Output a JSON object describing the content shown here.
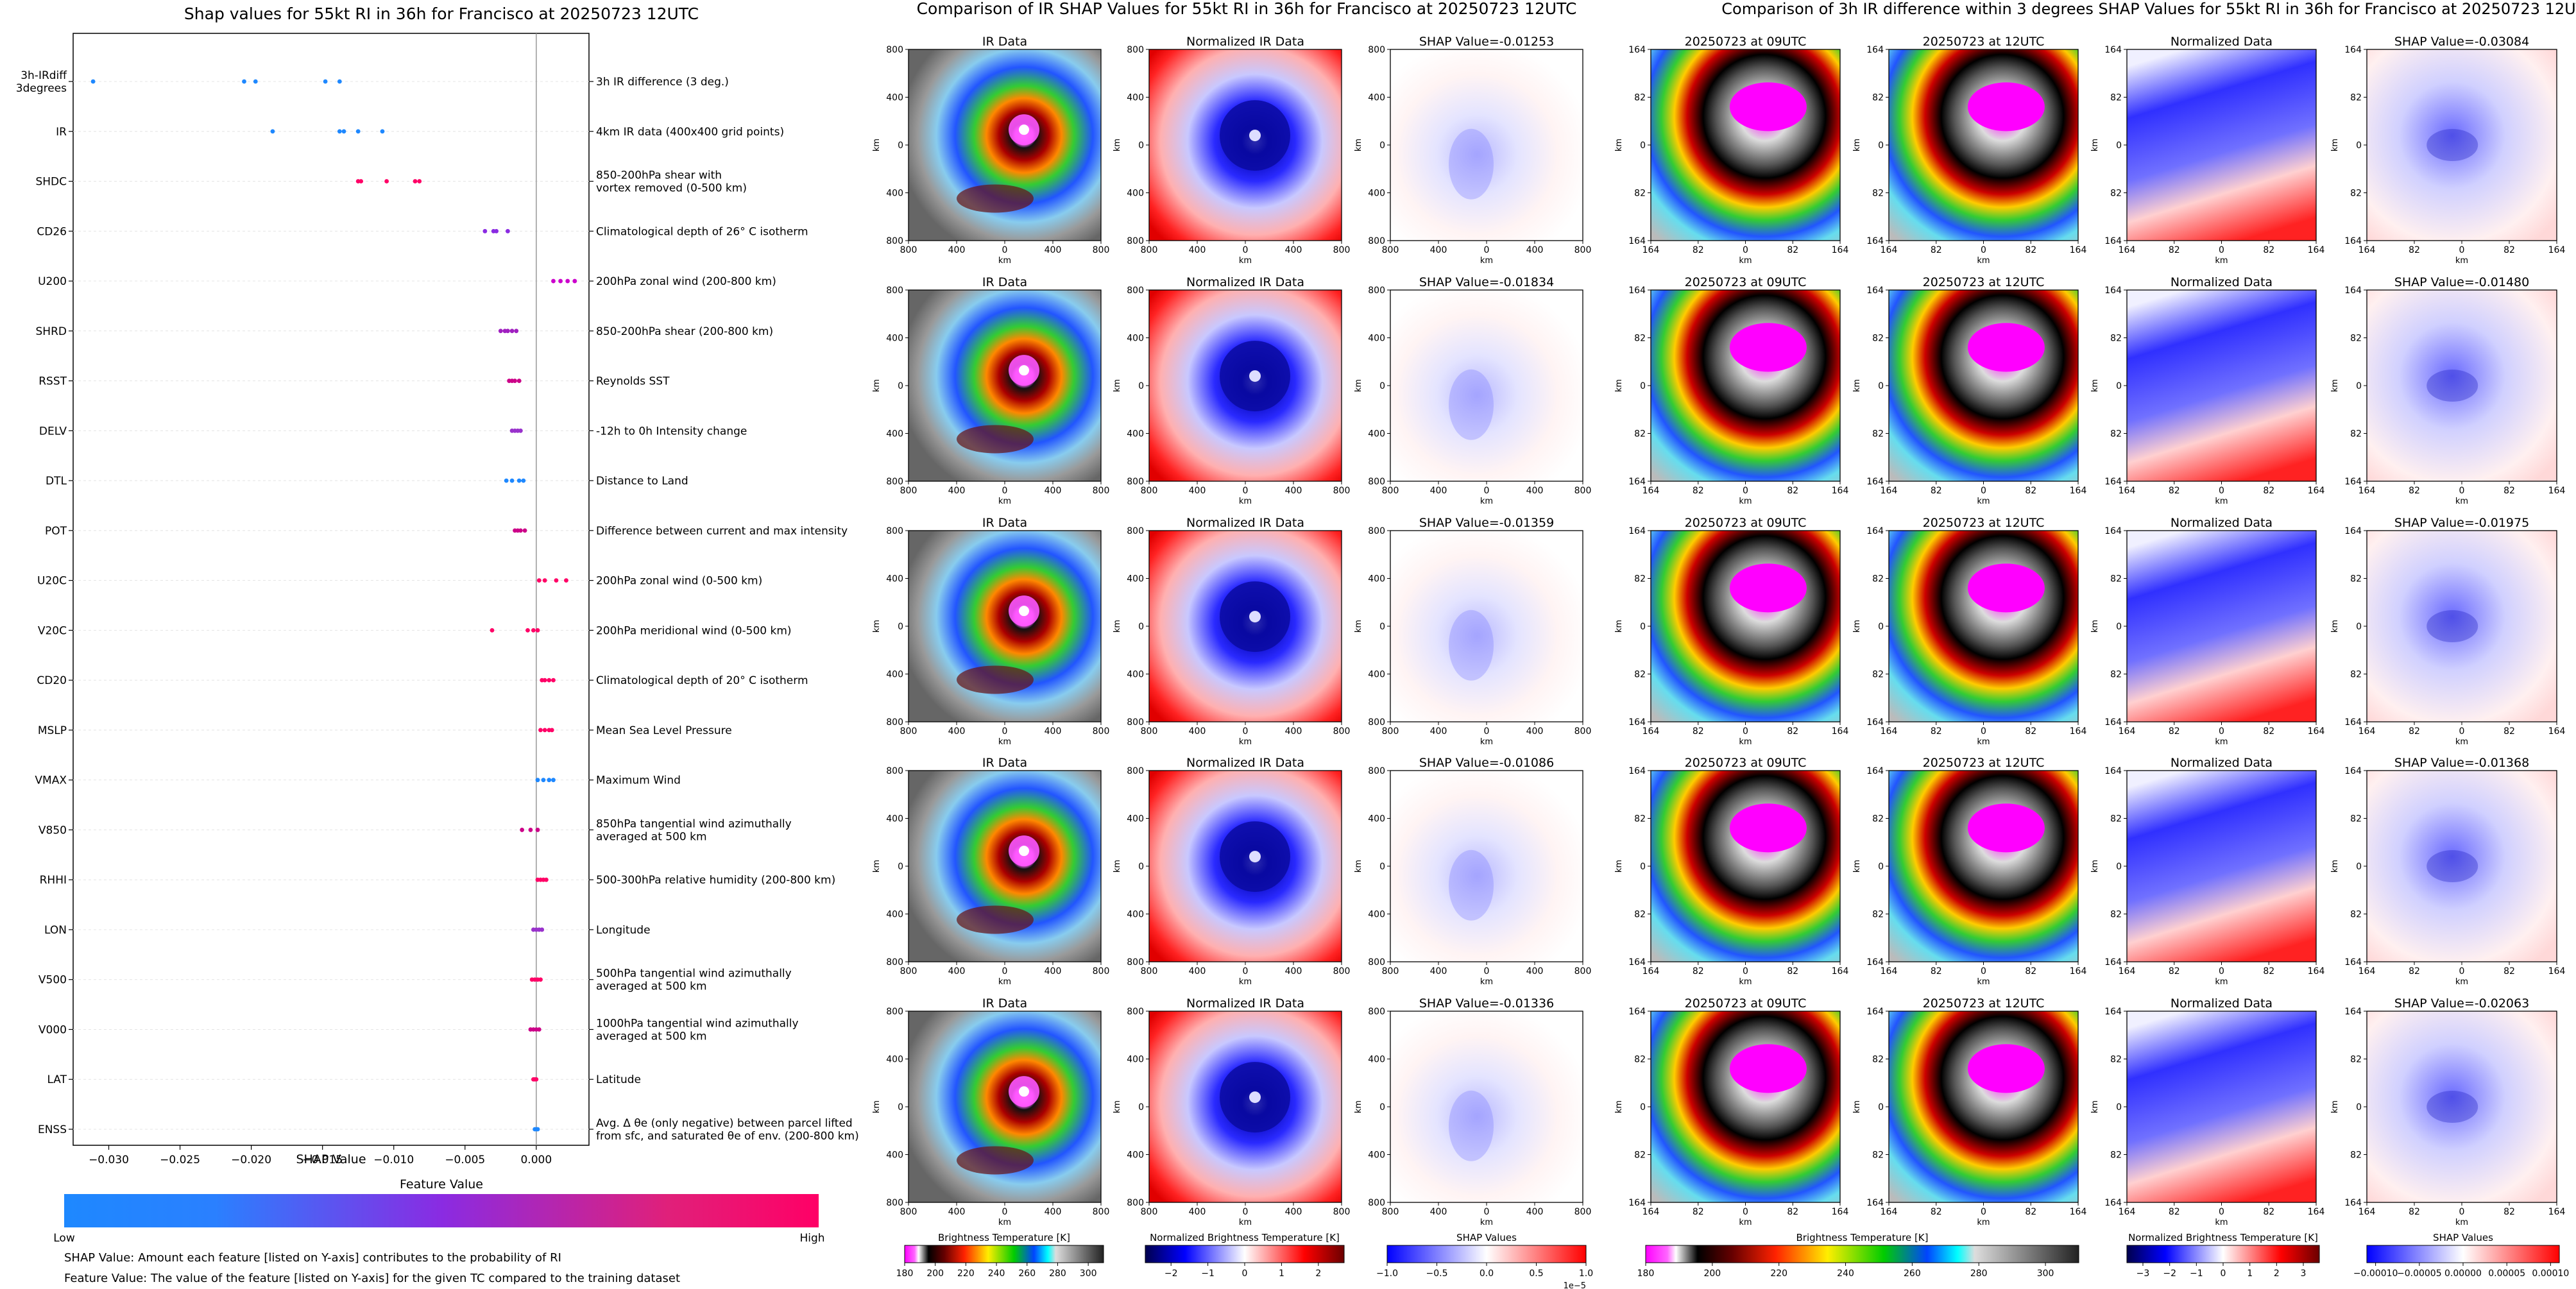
{
  "colors": {
    "low": "#1e88ff",
    "mid": "#8a2be2",
    "high": "#ff0066",
    "magenta": "#ff00ff",
    "zero_line": "#999999"
  },
  "left_panel": {
    "title": "Shap values for 55kt RI in 36h for Francisco at 20250723 12UTC",
    "xlabel": "SHAP Value",
    "feature_value_label": "Feature Value",
    "low_label": "Low",
    "high_label": "High",
    "note1": "SHAP Value: Amount each feature [listed on Y-axis] contributes to the probability of RI",
    "note2": "Feature Value: The value of the feature [listed on Y-axis] for the given TC compared to the training dataset"
  },
  "chart_data": [
    {
      "type": "scatter",
      "title": "Shap values for 55kt RI in 36h for Francisco at 20250723 12UTC",
      "xlabel": "SHAP Value",
      "ylabel": "",
      "xlim": [
        -0.0325,
        0.0037
      ],
      "xticks": [
        {
          "v": -0.03,
          "label": "−0.030"
        },
        {
          "v": -0.025,
          "label": "−0.025"
        },
        {
          "v": -0.02,
          "label": "−0.020"
        },
        {
          "v": -0.015,
          "label": "−0.015"
        },
        {
          "v": -0.01,
          "label": "−0.010"
        },
        {
          "v": -0.005,
          "label": "−0.005"
        },
        {
          "v": 0.0,
          "label": "0.000"
        }
      ],
      "features": [
        {
          "name": "3h-IRdiff\n3degrees",
          "desc": "3h IR difference (3 deg.)",
          "color": "#1e88ff",
          "values": [
            -0.0311,
            -0.0205,
            -0.0197,
            -0.0148,
            -0.0138
          ]
        },
        {
          "name": "IR",
          "desc": "4km IR data (400x400 grid points)",
          "color": "#1e88ff",
          "values": [
            -0.0185,
            -0.0138,
            -0.0135,
            -0.0125,
            -0.0108
          ]
        },
        {
          "name": "SHDC",
          "desc": "850-200hPa shear with\nvortex removed (0-500 km)",
          "color": "#ff0066",
          "values": [
            -0.0125,
            -0.0123,
            -0.0105,
            -0.0085,
            -0.0082
          ]
        },
        {
          "name": "CD26",
          "desc": "Climatological depth of 26° C isotherm",
          "color": "#8a2be2",
          "values": [
            -0.0036,
            -0.003,
            -0.0028,
            -0.002
          ]
        },
        {
          "name": "U200",
          "desc": "200hPa zonal wind (200-800 km)",
          "color": "#cc00cc",
          "values": [
            0.0012,
            0.0017,
            0.0022,
            0.0027
          ]
        },
        {
          "name": "SHRD",
          "desc": "850-200hPa shear (200-800 km)",
          "color": "#a020c0",
          "values": [
            -0.0025,
            -0.0022,
            -0.002,
            -0.0017,
            -0.0014
          ]
        },
        {
          "name": "RSST",
          "desc": "Reynolds SST",
          "color": "#cc0088",
          "values": [
            -0.0019,
            -0.0017,
            -0.0015,
            -0.0012
          ]
        },
        {
          "name": "DELV",
          "desc": "-12h to 0h Intensity change",
          "color": "#9932cc",
          "values": [
            -0.0017,
            -0.0015,
            -0.0013,
            -0.0011
          ]
        },
        {
          "name": "DTL",
          "desc": "Distance to Land",
          "color": "#1e88ff",
          "values": [
            -0.0021,
            -0.0017,
            -0.0012,
            -0.0009
          ]
        },
        {
          "name": "POT",
          "desc": "Difference between current and max intensity",
          "color": "#cc0088",
          "values": [
            -0.0015,
            -0.0013,
            -0.0011,
            -0.0008
          ]
        },
        {
          "name": "U20C",
          "desc": "200hPa zonal wind (0-500 km)",
          "color": "#ff0066",
          "values": [
            0.0002,
            0.0006,
            0.0014,
            0.0021
          ]
        },
        {
          "name": "V20C",
          "desc": "200hPa meridional wind (0-500 km)",
          "color": "#ff0066",
          "values": [
            -0.0031,
            -0.0006,
            -0.0002,
            0.0001
          ]
        },
        {
          "name": "CD20",
          "desc": "Climatological depth of 20° C isotherm",
          "color": "#ff0066",
          "values": [
            0.0004,
            0.0006,
            0.0009,
            0.0012
          ]
        },
        {
          "name": "MSLP",
          "desc": "Mean Sea Level Pressure",
          "color": "#ff0066",
          "values": [
            0.0003,
            0.0006,
            0.0009,
            0.0011
          ]
        },
        {
          "name": "VMAX",
          "desc": "Maximum Wind",
          "color": "#1e88ff",
          "values": [
            0.0001,
            0.0005,
            0.0009,
            0.0012
          ]
        },
        {
          "name": "V850",
          "desc": "850hPa tangential wind azimuthally\naveraged at 500 km",
          "color": "#cc0088",
          "values": [
            -0.001,
            -0.0004,
            0.0001
          ]
        },
        {
          "name": "RHHI",
          "desc": "500-300hPa relative humidity (200-800 km)",
          "color": "#ff0066",
          "values": [
            0.0001,
            0.0003,
            0.0005,
            0.0007
          ]
        },
        {
          "name": "LON",
          "desc": "Longitude",
          "color": "#9932cc",
          "values": [
            -0.0002,
            0.0,
            0.0002,
            0.0004
          ]
        },
        {
          "name": "V500",
          "desc": "500hPa tangential wind azimuthally\naveraged at 500 km",
          "color": "#ff0066",
          "values": [
            -0.0003,
            -0.0001,
            0.0001,
            0.0003
          ]
        },
        {
          "name": "V000",
          "desc": "1000hPa tangential wind azimuthally\naveraged at 500 km",
          "color": "#cc0088",
          "values": [
            -0.0004,
            -0.0002,
            0.0,
            0.0002
          ]
        },
        {
          "name": "LAT",
          "desc": "Latitude",
          "color": "#ff0066",
          "values": [
            -0.0002,
            -0.0001,
            0.0
          ]
        },
        {
          "name": "ENSS",
          "desc": "Avg. Δ θe (only negative) between parcel lifted\nfrom sfc, and saturated θe of env. (200-800 km)",
          "color": "#1e88ff",
          "values": [
            -0.0001,
            0.0,
            0.0001
          ]
        }
      ]
    }
  ],
  "middle": {
    "title": "Comparison of IR SHAP Values for 55kt RI in 36h for Francisco at 20250723 12UTC",
    "col_titles": [
      "IR Data",
      "Normalized IR Data"
    ],
    "shap_titles": [
      "SHAP Value=-0.01253",
      "SHAP Value=-0.01834",
      "SHAP Value=-0.01359",
      "SHAP Value=-0.01086",
      "SHAP Value=-0.01336"
    ],
    "ticks": [
      "800",
      "400",
      "0",
      "400",
      "800"
    ],
    "axis_label": "km",
    "colorbars": [
      {
        "label": "Brightness Temperature [K]",
        "ticks": [
          "180",
          "200",
          "220",
          "240",
          "260",
          "280",
          "300"
        ]
      },
      {
        "label": "Normalized Brightness Temperature [K]",
        "ticks": [
          "−2",
          "−1",
          "0",
          "1",
          "2"
        ]
      },
      {
        "label": "SHAP Values",
        "ticks": [
          "−1.0",
          "−0.5",
          "0.0",
          "0.5",
          "1.0"
        ],
        "exponent": "1e−5"
      }
    ]
  },
  "right": {
    "title": "Comparison of 3h IR difference within 3 degrees SHAP Values for 55kt RI in 36h for Francisco at 20250723 12UTC",
    "col_titles": [
      "20250723 at 09UTC",
      "20250723 at 12UTC",
      "Normalized Data"
    ],
    "shap_titles": [
      "SHAP Value=-0.03084",
      "SHAP Value=-0.01480",
      "SHAP Value=-0.01975",
      "SHAP Value=-0.01368",
      "SHAP Value=-0.02063"
    ],
    "ticks": [
      "164",
      "82",
      "0",
      "82",
      "164"
    ],
    "axis_label": "km",
    "colorbars": [
      {
        "label": "Brightness Temperature [K]",
        "ticks": [
          "180",
          "200",
          "220",
          "240",
          "260",
          "280",
          "300"
        ]
      },
      {
        "label": "Normalized Brightness Temperature [K]",
        "ticks": [
          "−3",
          "−2",
          "−1",
          "0",
          "1",
          "2",
          "3"
        ]
      },
      {
        "label": "SHAP Values",
        "ticks": [
          "−0.00010",
          "−0.00005",
          "0.00000",
          "0.00005",
          "0.00010"
        ]
      }
    ]
  }
}
